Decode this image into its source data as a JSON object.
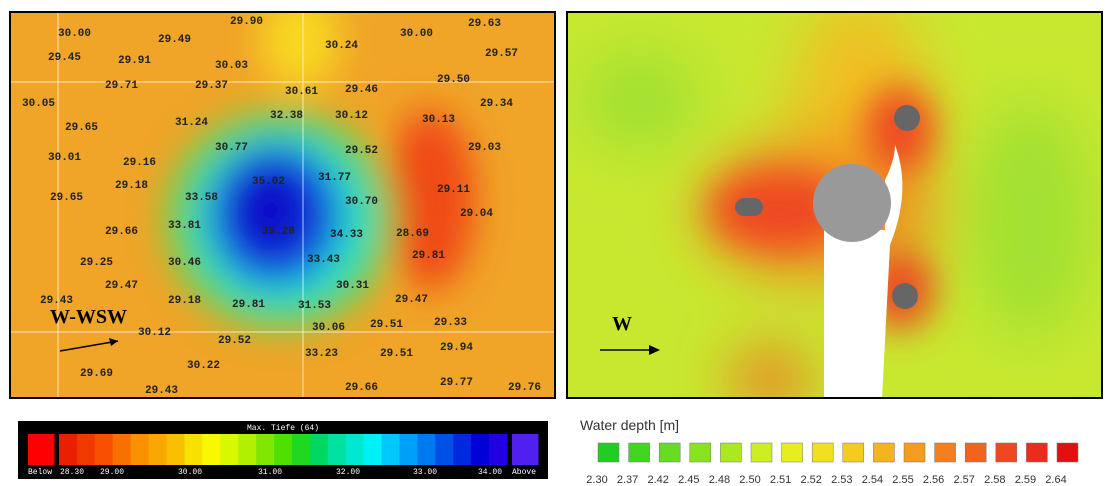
{
  "left": {
    "soundings": [
      "30.00",
      "29.49",
      "29.90",
      "30.24",
      "30.00",
      "29.63",
      "29.57",
      "29.45",
      "29.91",
      "30.03",
      "29.71",
      "29.37",
      "30.61",
      "29.46",
      "29.50",
      "29.34",
      "30.05",
      "32.38",
      "30.12",
      "30.13",
      "29.65",
      "31.24",
      "30.77",
      "29.52",
      "29.03",
      "30.01",
      "29.16",
      "31.77",
      "29.18",
      "35.02",
      "29.11",
      "29.65",
      "33.58",
      "30.70",
      "29.04",
      "29.66",
      "33.81",
      "35.28",
      "34.33",
      "28.69",
      "29.81",
      "29.25",
      "30.46",
      "33.43",
      "29.47",
      "30.31",
      "29.18",
      "29.81",
      "31.53",
      "29.47",
      "29.43",
      "30.12",
      "30.06",
      "29.51",
      "29.33",
      "29.52",
      "33.23",
      "29.51",
      "29.94",
      "30.22",
      "29.69",
      "29.77",
      "29.66",
      "29.76",
      "29.43"
    ],
    "arrow_label": "W-WSW",
    "colorbar": {
      "title": "Max. Tiefe (64)",
      "labels": [
        "Below",
        "28.30",
        "29.00",
        "30.00",
        "31.00",
        "32.00",
        "33.00",
        "34.00",
        "Above"
      ],
      "colors": [
        "#ff0000",
        "#e82000",
        "#f03800",
        "#f85000",
        "#f87000",
        "#f89000",
        "#f8a800",
        "#f8c000",
        "#f8e000",
        "#f8f800",
        "#d8f800",
        "#b0f000",
        "#80e800",
        "#50e000",
        "#20d820",
        "#00d860",
        "#00e0a0",
        "#00e8d0",
        "#00f0f8",
        "#00c8f8",
        "#00a0f8",
        "#0078f0",
        "#0050e8",
        "#0028e0",
        "#0000d8",
        "#2000e0",
        "#5020f0"
      ]
    }
  },
  "right": {
    "arrow_label": "W",
    "legend": {
      "title": "Water depth [m]",
      "labels": [
        "2.30",
        "2.37",
        "2.42",
        "2.45",
        "2.48",
        "2.50",
        "2.51",
        "2.52",
        "2.53",
        "2.54",
        "2.55",
        "2.56",
        "2.57",
        "2.58",
        "2.59",
        "2.64"
      ],
      "colors": [
        "#22cc22",
        "#44d422",
        "#66dc22",
        "#88e222",
        "#aae822",
        "#ccee22",
        "#e6ee22",
        "#f0e020",
        "#f4cc20",
        "#f4b420",
        "#f49c20",
        "#f28020",
        "#f06420",
        "#ee4820",
        "#ea2c1c",
        "#e01010"
      ]
    }
  }
}
